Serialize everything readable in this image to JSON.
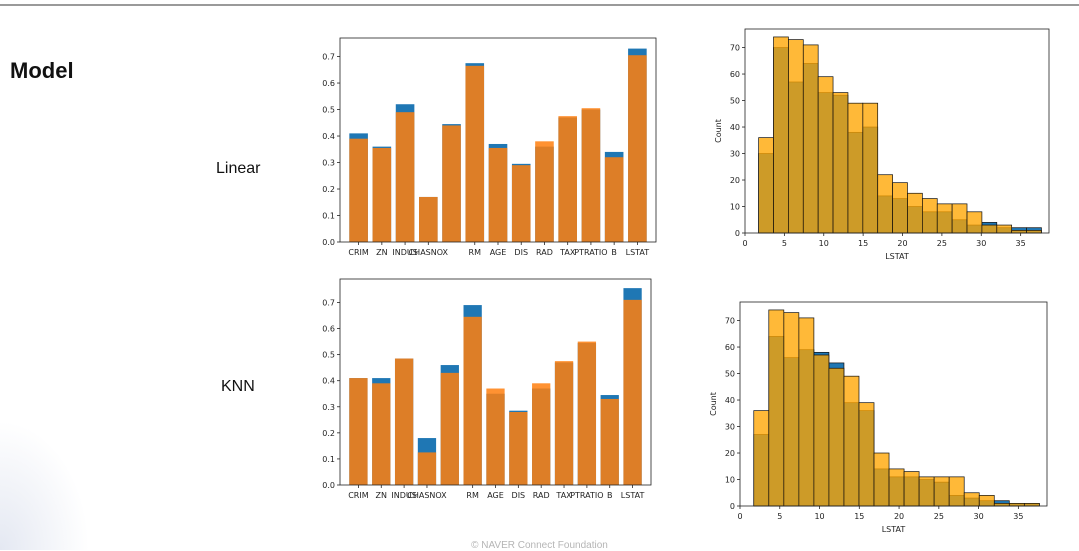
{
  "page": {
    "title": "Model",
    "footer": "© NAVER Connect Foundation"
  },
  "rows": [
    {
      "label": "Linear"
    },
    {
      "label": "KNN"
    }
  ],
  "colors": {
    "blue": "#1f77b4",
    "orange": "#ff7f0e",
    "blue_hist": "#1f77b4",
    "orange_hist": "#ffa500"
  },
  "chart_data": [
    {
      "type": "bar",
      "categories": [
        "CRIM",
        "ZN",
        "INDUS",
        "CHAS",
        "NOX",
        "RM",
        "AGE",
        "DIS",
        "RAD",
        "TAX",
        "PTRATIO",
        "B",
        "LSTAT"
      ],
      "tick_labels": [
        "CRIM",
        "ZN",
        "INDUS",
        "CHASNOX",
        "",
        "RM",
        "AGE",
        "DIS",
        "RAD",
        "TAX",
        "PTRATIO",
        "B",
        "LSTAT"
      ],
      "series": [
        {
          "values": [
            0.41,
            0.36,
            0.52,
            0.17,
            0.445,
            0.675,
            0.37,
            0.295,
            0.36,
            0.47,
            0.5,
            0.34,
            0.73
          ]
        },
        {
          "values": [
            0.39,
            0.355,
            0.49,
            0.17,
            0.44,
            0.665,
            0.355,
            0.29,
            0.38,
            0.475,
            0.505,
            0.32,
            0.705
          ]
        }
      ],
      "yticks": [
        0.0,
        0.1,
        0.2,
        0.3,
        0.4,
        0.5,
        0.6,
        0.7
      ],
      "ylim": [
        0,
        0.77
      ]
    },
    {
      "type": "histogram",
      "xlabel": "LSTAT",
      "ylabel": "Count",
      "bins": [
        1.73,
        3.62,
        5.51,
        7.4,
        9.29,
        11.18,
        13.07,
        14.96,
        16.85,
        18.74,
        20.63,
        22.52,
        24.41,
        26.3,
        28.19,
        30.08,
        31.97,
        33.86,
        35.75,
        37.64
      ],
      "series": [
        {
          "counts": [
            30,
            70,
            57,
            64,
            53,
            52,
            38,
            40,
            14,
            13,
            10,
            8,
            8,
            5,
            3,
            4,
            2,
            2,
            2
          ]
        },
        {
          "counts": [
            36,
            74,
            73,
            71,
            59,
            53,
            49,
            49,
            22,
            19,
            15,
            13,
            11,
            11,
            8,
            3,
            3,
            1,
            1
          ]
        }
      ],
      "xticks": [
        0,
        5,
        10,
        15,
        20,
        25,
        30,
        35
      ],
      "yticks": [
        0,
        10,
        20,
        30,
        40,
        50,
        60,
        70
      ],
      "xlim": [
        0,
        38.6
      ],
      "ylim": [
        0,
        77
      ]
    },
    {
      "type": "bar",
      "categories": [
        "CRIM",
        "ZN",
        "INDUS",
        "CHAS",
        "NOX",
        "RM",
        "AGE",
        "DIS",
        "RAD",
        "TAX",
        "PTRATIO",
        "B",
        "LSTAT"
      ],
      "tick_labels": [
        "CRIM",
        "ZN",
        "INDUS",
        "CHASNOX",
        "",
        "RM",
        "AGE",
        "DIS",
        "RAD",
        "TAX",
        "PTRATIO",
        "B",
        "LSTAT"
      ],
      "series": [
        {
          "values": [
            0.41,
            0.41,
            0.485,
            0.18,
            0.46,
            0.69,
            0.35,
            0.285,
            0.37,
            0.47,
            0.545,
            0.345,
            0.755
          ]
        },
        {
          "values": [
            0.41,
            0.39,
            0.485,
            0.125,
            0.43,
            0.645,
            0.37,
            0.28,
            0.39,
            0.475,
            0.55,
            0.33,
            0.71
          ]
        }
      ],
      "yticks": [
        0.0,
        0.1,
        0.2,
        0.3,
        0.4,
        0.5,
        0.6,
        0.7
      ],
      "ylim": [
        0,
        0.79
      ]
    },
    {
      "type": "histogram",
      "xlabel": "LSTAT",
      "ylabel": "Count",
      "bins": [
        1.73,
        3.62,
        5.51,
        7.4,
        9.29,
        11.18,
        13.07,
        14.96,
        16.85,
        18.74,
        20.63,
        22.52,
        24.41,
        26.3,
        28.19,
        30.08,
        31.97,
        33.86,
        35.75,
        37.64
      ],
      "series": [
        {
          "counts": [
            27,
            64,
            56,
            59,
            58,
            54,
            39,
            36,
            14,
            11,
            11,
            10,
            9,
            4,
            3,
            2,
            2,
            1,
            1
          ]
        },
        {
          "counts": [
            36,
            74,
            73,
            71,
            57,
            52,
            49,
            39,
            20,
            14,
            13,
            11,
            11,
            11,
            5,
            4,
            1,
            1,
            1
          ]
        }
      ],
      "xticks": [
        0,
        5,
        10,
        15,
        20,
        25,
        30,
        35
      ],
      "yticks": [
        0,
        10,
        20,
        30,
        40,
        50,
        60,
        70
      ],
      "xlim": [
        0,
        38.6
      ],
      "ylim": [
        0,
        77
      ]
    }
  ]
}
